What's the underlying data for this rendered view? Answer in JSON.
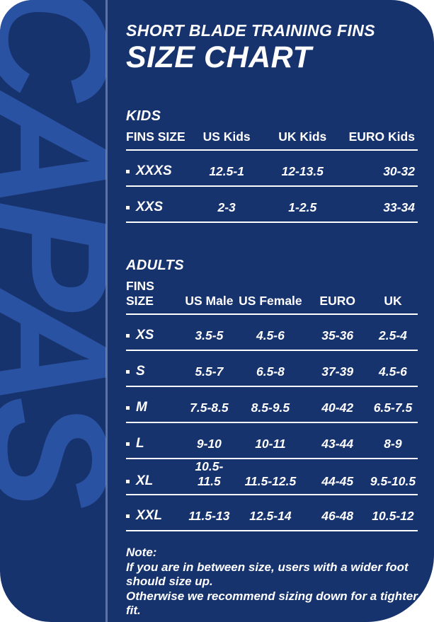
{
  "header": {
    "kicker": "SHORT BLADE TRAINING FINS",
    "title": "SIZE CHART"
  },
  "watermark_text": "CAPAS",
  "colors": {
    "page_background": "#FFFFFF",
    "card_background": "#17336E",
    "watermark_blue": "#2A52A2",
    "text": "#FFFFFF"
  },
  "icons": {
    "row_marker": "square-bullet"
  },
  "tables": {
    "kids": {
      "section_label": "KIDS",
      "headers": [
        "FINS SIZE",
        "US Kids",
        "UK Kids",
        "EURO Kids"
      ],
      "rows": [
        {
          "size": "XXXS",
          "values": [
            "12.5-1",
            "12-13.5",
            "30-32"
          ]
        },
        {
          "size": "XXS",
          "values": [
            "2-3",
            "1-2.5",
            "33-34"
          ]
        }
      ]
    },
    "adults": {
      "section_label": "ADULTS",
      "headers": [
        "FINS SIZE",
        "US Male",
        "US Female",
        "EURO",
        "UK"
      ],
      "rows": [
        {
          "size": "XS",
          "values": [
            "3.5-5",
            "4.5-6",
            "35-36",
            "2.5-4"
          ]
        },
        {
          "size": "S",
          "values": [
            "5.5-7",
            "6.5-8",
            "37-39",
            "4.5-6"
          ]
        },
        {
          "size": "M",
          "values": [
            "7.5-8.5",
            "8.5-9.5",
            "40-42",
            "6.5-7.5"
          ]
        },
        {
          "size": "L",
          "values": [
            "9-10",
            "10-11",
            "43-44",
            "8-9"
          ]
        },
        {
          "size": "XL",
          "values": [
            "10.5-11.5",
            "11.5-12.5",
            "44-45",
            "9.5-10.5"
          ]
        },
        {
          "size": "XXL",
          "values": [
            "11.5-13",
            "12.5-14",
            "46-48",
            "10.5-12"
          ]
        }
      ]
    }
  },
  "note": {
    "label": "Note:",
    "lines": [
      "If you are in between size, users with a wider foot",
      "should size up.",
      "Otherwise we recommend sizing down for a tighter fit."
    ]
  },
  "chart_data": [
    {
      "type": "table",
      "title": "KIDS",
      "columns": [
        "FINS SIZE",
        "US Kids",
        "UK Kids",
        "EURO Kids"
      ],
      "rows": [
        [
          "XXXS",
          "12.5-1",
          "12-13.5",
          "30-32"
        ],
        [
          "XXS",
          "2-3",
          "1-2.5",
          "33-34"
        ]
      ]
    },
    {
      "type": "table",
      "title": "ADULTS",
      "columns": [
        "FINS SIZE",
        "US Male",
        "US Female",
        "EURO",
        "UK"
      ],
      "rows": [
        [
          "XS",
          "3.5-5",
          "4.5-6",
          "35-36",
          "2.5-4"
        ],
        [
          "S",
          "5.5-7",
          "6.5-8",
          "37-39",
          "4.5-6"
        ],
        [
          "M",
          "7.5-8.5",
          "8.5-9.5",
          "40-42",
          "6.5-7.5"
        ],
        [
          "L",
          "9-10",
          "10-11",
          "43-44",
          "8-9"
        ],
        [
          "XL",
          "10.5-11.5",
          "11.5-12.5",
          "44-45",
          "9.5-10.5"
        ],
        [
          "XXL",
          "11.5-13",
          "12.5-14",
          "46-48",
          "10.5-12"
        ]
      ]
    }
  ]
}
